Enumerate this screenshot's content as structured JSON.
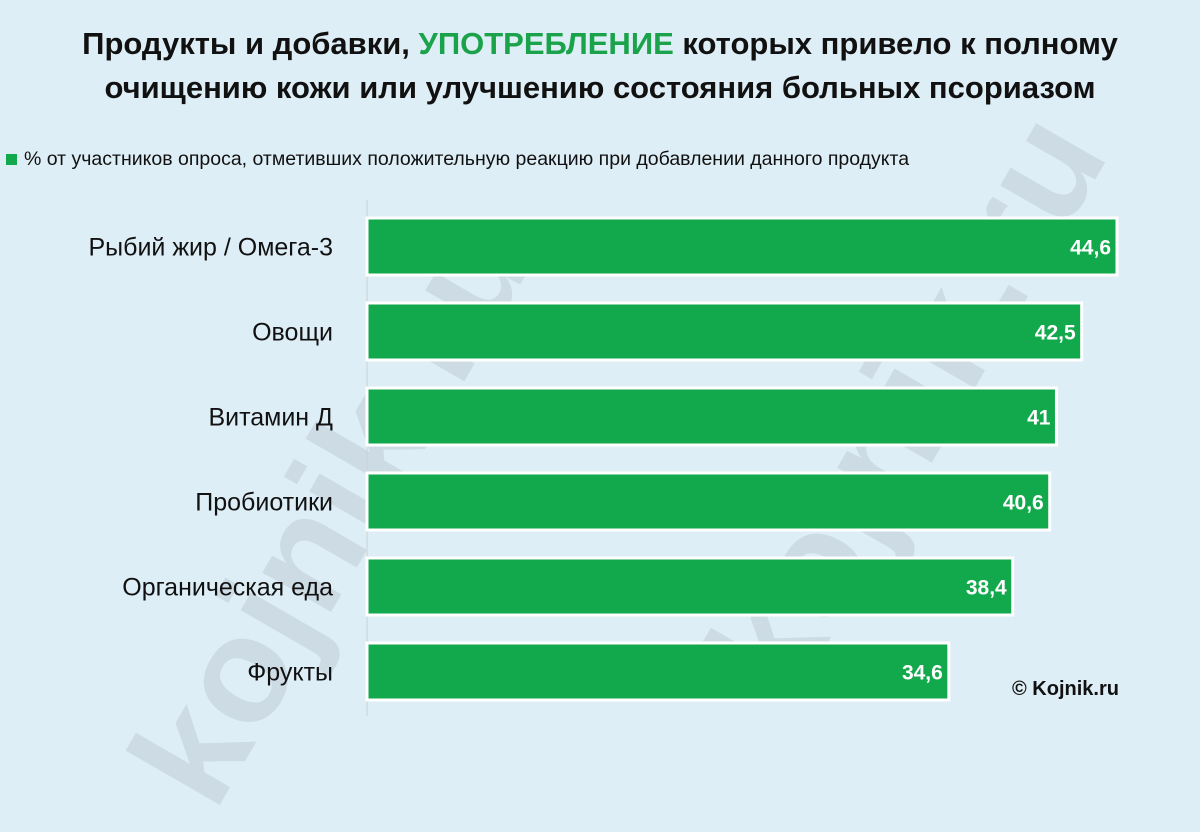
{
  "title": {
    "part1": "Продукты и добавки, ",
    "highlight": "УПОТРЕБЛЕНИЕ",
    "part2": " которых привело к полному",
    "line2": "очищению кожи или улучшению состояния больных псориазом"
  },
  "legend": {
    "label": "% от участников опроса, отметивших положительную реакцию при добавлении данного продукта"
  },
  "watermark": "kojnik.ru",
  "copyright": "© Kojnik.ru",
  "colors": {
    "bar": "#12a94c",
    "bar_border": "#ffffff",
    "highlight": "#1aa34a",
    "background": "#deeef6"
  },
  "chart_data": {
    "type": "bar",
    "orientation": "horizontal",
    "categories": [
      "Рыбий жир / Омега-3",
      "Овощи",
      "Витамин Д",
      "Пробиотики",
      "Органическая еда",
      "Фрукты"
    ],
    "values": [
      44.6,
      42.5,
      41,
      40.6,
      38.4,
      34.6
    ],
    "value_labels": [
      "44,6",
      "42,5",
      "41",
      "40,6",
      "38,4",
      "34,6"
    ],
    "series": [
      {
        "name": "% от участников опроса, отметивших положительную реакцию при добавлении данного продукта",
        "values": [
          44.6,
          42.5,
          41,
          40.6,
          38.4,
          34.6
        ]
      }
    ],
    "xlim": [
      0,
      48
    ],
    "grid": false,
    "legend_position": "top-left"
  }
}
